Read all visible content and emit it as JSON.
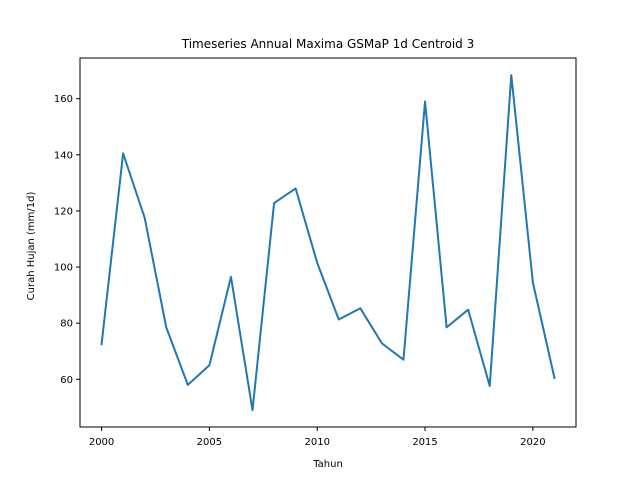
{
  "chart_data": {
    "type": "line",
    "title": "Timeseries Annual Maxima GSMaP 1d Centroid 3",
    "xlabel": "Tahun",
    "ylabel": "Curah Hujan (mm/1d)",
    "xlim": [
      1999.0,
      2022.0
    ],
    "ylim": [
      43.0,
      174.5
    ],
    "xticks": [
      2000,
      2005,
      2010,
      2015,
      2020
    ],
    "yticks": [
      60,
      80,
      100,
      120,
      140,
      160
    ],
    "grid": false,
    "line_color": "#1f77b4",
    "series": [
      {
        "x": [
          2000,
          2001,
          2002,
          2003,
          2004,
          2005,
          2006,
          2007,
          2008,
          2009,
          2010,
          2011,
          2012,
          2013,
          2014,
          2015,
          2016,
          2017,
          2018,
          2019,
          2020,
          2021
        ],
        "values": [
          72.5,
          140.5,
          117.5,
          78.5,
          58.0,
          65.0,
          96.5,
          49.0,
          122.8,
          128.0,
          101.5,
          81.3,
          85.3,
          72.8,
          67.0,
          159.0,
          78.5,
          84.8,
          57.6,
          168.4,
          94.5,
          60.5
        ]
      }
    ]
  }
}
